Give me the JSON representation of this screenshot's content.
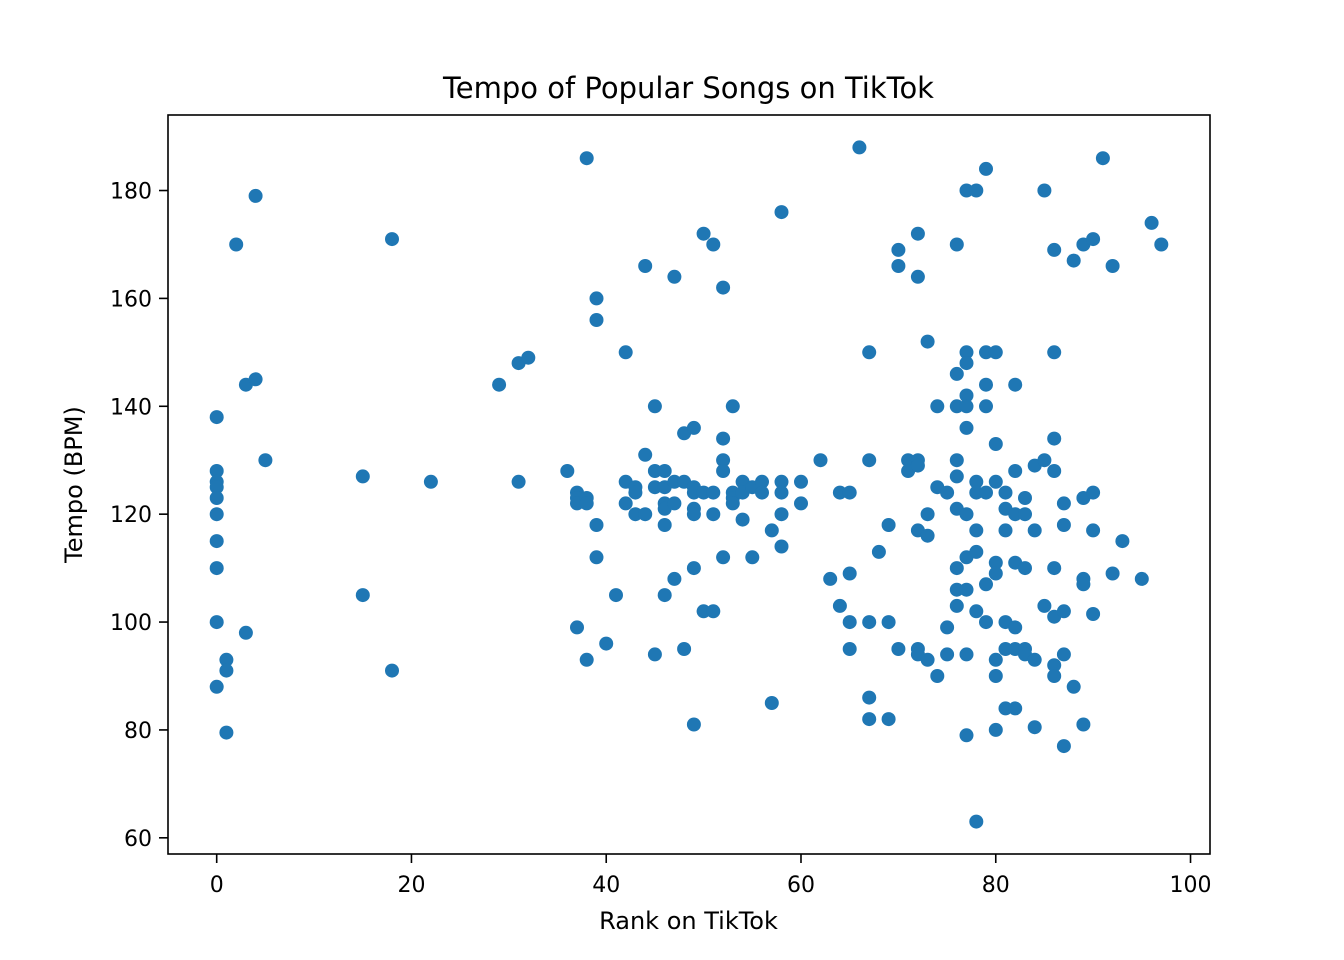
{
  "chart_data": {
    "type": "scatter",
    "title": "Tempo of Popular Songs on TikTok",
    "xlabel": "Rank on TikTok",
    "ylabel": "Tempo (BPM)",
    "xlim": [
      -5,
      102
    ],
    "ylim": [
      57,
      194
    ],
    "xticks": [
      0,
      20,
      40,
      60,
      80,
      100
    ],
    "yticks": [
      60,
      80,
      100,
      120,
      140,
      160,
      180
    ],
    "grid": false,
    "legend": "none",
    "marker_color": "#1f77b4",
    "points": [
      {
        "x": 0,
        "y": 138
      },
      {
        "x": 0,
        "y": 128
      },
      {
        "x": 0,
        "y": 126
      },
      {
        "x": 0,
        "y": 125
      },
      {
        "x": 0,
        "y": 123
      },
      {
        "x": 0,
        "y": 120
      },
      {
        "x": 0,
        "y": 115
      },
      {
        "x": 0,
        "y": 110
      },
      {
        "x": 0,
        "y": 100
      },
      {
        "x": 0,
        "y": 88
      },
      {
        "x": 1,
        "y": 93
      },
      {
        "x": 1,
        "y": 91
      },
      {
        "x": 1,
        "y": 79.5
      },
      {
        "x": 2,
        "y": 170
      },
      {
        "x": 3,
        "y": 144
      },
      {
        "x": 3,
        "y": 98
      },
      {
        "x": 4,
        "y": 179
      },
      {
        "x": 4,
        "y": 145
      },
      {
        "x": 5,
        "y": 130
      },
      {
        "x": 15,
        "y": 127
      },
      {
        "x": 15,
        "y": 105
      },
      {
        "x": 18,
        "y": 171
      },
      {
        "x": 18,
        "y": 91
      },
      {
        "x": 22,
        "y": 126
      },
      {
        "x": 29,
        "y": 144
      },
      {
        "x": 31,
        "y": 148
      },
      {
        "x": 31,
        "y": 126
      },
      {
        "x": 32,
        "y": 149
      },
      {
        "x": 36,
        "y": 128
      },
      {
        "x": 37,
        "y": 124
      },
      {
        "x": 37,
        "y": 123
      },
      {
        "x": 37,
        "y": 122
      },
      {
        "x": 37,
        "y": 99
      },
      {
        "x": 38,
        "y": 186
      },
      {
        "x": 38,
        "y": 123
      },
      {
        "x": 38,
        "y": 122
      },
      {
        "x": 38,
        "y": 93
      },
      {
        "x": 39,
        "y": 160
      },
      {
        "x": 39,
        "y": 156
      },
      {
        "x": 39,
        "y": 118
      },
      {
        "x": 39,
        "y": 112
      },
      {
        "x": 40,
        "y": 96
      },
      {
        "x": 41,
        "y": 105
      },
      {
        "x": 42,
        "y": 150
      },
      {
        "x": 42,
        "y": 126
      },
      {
        "x": 42,
        "y": 122
      },
      {
        "x": 43,
        "y": 125
      },
      {
        "x": 43,
        "y": 124
      },
      {
        "x": 43,
        "y": 120
      },
      {
        "x": 44,
        "y": 166
      },
      {
        "x": 44,
        "y": 131
      },
      {
        "x": 44,
        "y": 120
      },
      {
        "x": 45,
        "y": 140
      },
      {
        "x": 45,
        "y": 128
      },
      {
        "x": 45,
        "y": 125
      },
      {
        "x": 45,
        "y": 94
      },
      {
        "x": 46,
        "y": 128
      },
      {
        "x": 46,
        "y": 125
      },
      {
        "x": 46,
        "y": 122
      },
      {
        "x": 46,
        "y": 121
      },
      {
        "x": 46,
        "y": 118
      },
      {
        "x": 46,
        "y": 105
      },
      {
        "x": 47,
        "y": 164
      },
      {
        "x": 47,
        "y": 126
      },
      {
        "x": 47,
        "y": 122
      },
      {
        "x": 47,
        "y": 108
      },
      {
        "x": 48,
        "y": 135
      },
      {
        "x": 48,
        "y": 126
      },
      {
        "x": 48,
        "y": 95
      },
      {
        "x": 49,
        "y": 136
      },
      {
        "x": 49,
        "y": 125
      },
      {
        "x": 49,
        "y": 124
      },
      {
        "x": 49,
        "y": 121
      },
      {
        "x": 49,
        "y": 120
      },
      {
        "x": 49,
        "y": 110
      },
      {
        "x": 49,
        "y": 81
      },
      {
        "x": 50,
        "y": 172
      },
      {
        "x": 50,
        "y": 124
      },
      {
        "x": 50,
        "y": 102
      },
      {
        "x": 51,
        "y": 170
      },
      {
        "x": 51,
        "y": 124
      },
      {
        "x": 51,
        "y": 120
      },
      {
        "x": 51,
        "y": 102
      },
      {
        "x": 52,
        "y": 162
      },
      {
        "x": 52,
        "y": 134
      },
      {
        "x": 52,
        "y": 130
      },
      {
        "x": 52,
        "y": 128
      },
      {
        "x": 52,
        "y": 112
      },
      {
        "x": 53,
        "y": 140
      },
      {
        "x": 53,
        "y": 124
      },
      {
        "x": 53,
        "y": 123
      },
      {
        "x": 53,
        "y": 122
      },
      {
        "x": 54,
        "y": 126
      },
      {
        "x": 54,
        "y": 124
      },
      {
        "x": 54,
        "y": 119
      },
      {
        "x": 55,
        "y": 125
      },
      {
        "x": 55,
        "y": 112
      },
      {
        "x": 56,
        "y": 126
      },
      {
        "x": 56,
        "y": 124
      },
      {
        "x": 57,
        "y": 117
      },
      {
        "x": 57,
        "y": 85
      },
      {
        "x": 58,
        "y": 176
      },
      {
        "x": 58,
        "y": 126
      },
      {
        "x": 58,
        "y": 124
      },
      {
        "x": 58,
        "y": 120
      },
      {
        "x": 58,
        "y": 114
      },
      {
        "x": 60,
        "y": 126
      },
      {
        "x": 60,
        "y": 122
      },
      {
        "x": 62,
        "y": 130
      },
      {
        "x": 63,
        "y": 108
      },
      {
        "x": 64,
        "y": 124
      },
      {
        "x": 64,
        "y": 103
      },
      {
        "x": 65,
        "y": 124
      },
      {
        "x": 65,
        "y": 109
      },
      {
        "x": 65,
        "y": 100
      },
      {
        "x": 65,
        "y": 95
      },
      {
        "x": 66,
        "y": 188
      },
      {
        "x": 67,
        "y": 150
      },
      {
        "x": 67,
        "y": 130
      },
      {
        "x": 67,
        "y": 100
      },
      {
        "x": 67,
        "y": 86
      },
      {
        "x": 67,
        "y": 82
      },
      {
        "x": 68,
        "y": 113
      },
      {
        "x": 69,
        "y": 118
      },
      {
        "x": 69,
        "y": 100
      },
      {
        "x": 69,
        "y": 82
      },
      {
        "x": 70,
        "y": 169
      },
      {
        "x": 70,
        "y": 166
      },
      {
        "x": 70,
        "y": 95
      },
      {
        "x": 71,
        "y": 130
      },
      {
        "x": 71,
        "y": 128
      },
      {
        "x": 72,
        "y": 172
      },
      {
        "x": 72,
        "y": 164
      },
      {
        "x": 72,
        "y": 130
      },
      {
        "x": 72,
        "y": 129
      },
      {
        "x": 72,
        "y": 117
      },
      {
        "x": 72,
        "y": 95
      },
      {
        "x": 72,
        "y": 94
      },
      {
        "x": 73,
        "y": 152
      },
      {
        "x": 73,
        "y": 120
      },
      {
        "x": 73,
        "y": 116
      },
      {
        "x": 73,
        "y": 93
      },
      {
        "x": 74,
        "y": 140
      },
      {
        "x": 74,
        "y": 125
      },
      {
        "x": 74,
        "y": 90
      },
      {
        "x": 75,
        "y": 124
      },
      {
        "x": 75,
        "y": 99
      },
      {
        "x": 75,
        "y": 94
      },
      {
        "x": 76,
        "y": 170
      },
      {
        "x": 76,
        "y": 146
      },
      {
        "x": 76,
        "y": 140
      },
      {
        "x": 76,
        "y": 130
      },
      {
        "x": 76,
        "y": 127
      },
      {
        "x": 76,
        "y": 121
      },
      {
        "x": 76,
        "y": 110
      },
      {
        "x": 76,
        "y": 106
      },
      {
        "x": 76,
        "y": 103
      },
      {
        "x": 77,
        "y": 180
      },
      {
        "x": 77,
        "y": 150
      },
      {
        "x": 77,
        "y": 148
      },
      {
        "x": 77,
        "y": 142
      },
      {
        "x": 77,
        "y": 140
      },
      {
        "x": 77,
        "y": 136
      },
      {
        "x": 77,
        "y": 120
      },
      {
        "x": 77,
        "y": 112
      },
      {
        "x": 77,
        "y": 106
      },
      {
        "x": 77,
        "y": 94
      },
      {
        "x": 77,
        "y": 79
      },
      {
        "x": 78,
        "y": 180
      },
      {
        "x": 78,
        "y": 126
      },
      {
        "x": 78,
        "y": 124
      },
      {
        "x": 78,
        "y": 117
      },
      {
        "x": 78,
        "y": 113
      },
      {
        "x": 78,
        "y": 102
      },
      {
        "x": 78,
        "y": 63
      },
      {
        "x": 79,
        "y": 184
      },
      {
        "x": 79,
        "y": 150
      },
      {
        "x": 79,
        "y": 144
      },
      {
        "x": 79,
        "y": 140
      },
      {
        "x": 79,
        "y": 124
      },
      {
        "x": 79,
        "y": 107
      },
      {
        "x": 79,
        "y": 100
      },
      {
        "x": 80,
        "y": 150
      },
      {
        "x": 80,
        "y": 133
      },
      {
        "x": 80,
        "y": 126
      },
      {
        "x": 80,
        "y": 111
      },
      {
        "x": 80,
        "y": 109
      },
      {
        "x": 80,
        "y": 93
      },
      {
        "x": 80,
        "y": 90
      },
      {
        "x": 80,
        "y": 80
      },
      {
        "x": 81,
        "y": 124
      },
      {
        "x": 81,
        "y": 121
      },
      {
        "x": 81,
        "y": 117
      },
      {
        "x": 81,
        "y": 100
      },
      {
        "x": 81,
        "y": 95
      },
      {
        "x": 81,
        "y": 84
      },
      {
        "x": 82,
        "y": 144
      },
      {
        "x": 82,
        "y": 128
      },
      {
        "x": 82,
        "y": 120
      },
      {
        "x": 82,
        "y": 111
      },
      {
        "x": 82,
        "y": 99
      },
      {
        "x": 82,
        "y": 95
      },
      {
        "x": 82,
        "y": 84
      },
      {
        "x": 83,
        "y": 123
      },
      {
        "x": 83,
        "y": 120
      },
      {
        "x": 83,
        "y": 110
      },
      {
        "x": 83,
        "y": 95
      },
      {
        "x": 83,
        "y": 94
      },
      {
        "x": 84,
        "y": 129
      },
      {
        "x": 84,
        "y": 117
      },
      {
        "x": 84,
        "y": 93
      },
      {
        "x": 84,
        "y": 80.5
      },
      {
        "x": 85,
        "y": 180
      },
      {
        "x": 85,
        "y": 130
      },
      {
        "x": 85,
        "y": 103
      },
      {
        "x": 86,
        "y": 169
      },
      {
        "x": 86,
        "y": 150
      },
      {
        "x": 86,
        "y": 134
      },
      {
        "x": 86,
        "y": 128
      },
      {
        "x": 86,
        "y": 110
      },
      {
        "x": 86,
        "y": 101
      },
      {
        "x": 86,
        "y": 92
      },
      {
        "x": 86,
        "y": 90
      },
      {
        "x": 87,
        "y": 122
      },
      {
        "x": 87,
        "y": 118
      },
      {
        "x": 87,
        "y": 102
      },
      {
        "x": 87,
        "y": 94
      },
      {
        "x": 87,
        "y": 77
      },
      {
        "x": 88,
        "y": 167
      },
      {
        "x": 88,
        "y": 88
      },
      {
        "x": 89,
        "y": 170
      },
      {
        "x": 89,
        "y": 123
      },
      {
        "x": 89,
        "y": 108
      },
      {
        "x": 89,
        "y": 107
      },
      {
        "x": 89,
        "y": 81
      },
      {
        "x": 90,
        "y": 171
      },
      {
        "x": 90,
        "y": 124
      },
      {
        "x": 90,
        "y": 117
      },
      {
        "x": 90,
        "y": 101.5
      },
      {
        "x": 91,
        "y": 186
      },
      {
        "x": 92,
        "y": 166
      },
      {
        "x": 92,
        "y": 109
      },
      {
        "x": 93,
        "y": 115
      },
      {
        "x": 95,
        "y": 108
      },
      {
        "x": 96,
        "y": 174
      },
      {
        "x": 97,
        "y": 170
      }
    ]
  }
}
